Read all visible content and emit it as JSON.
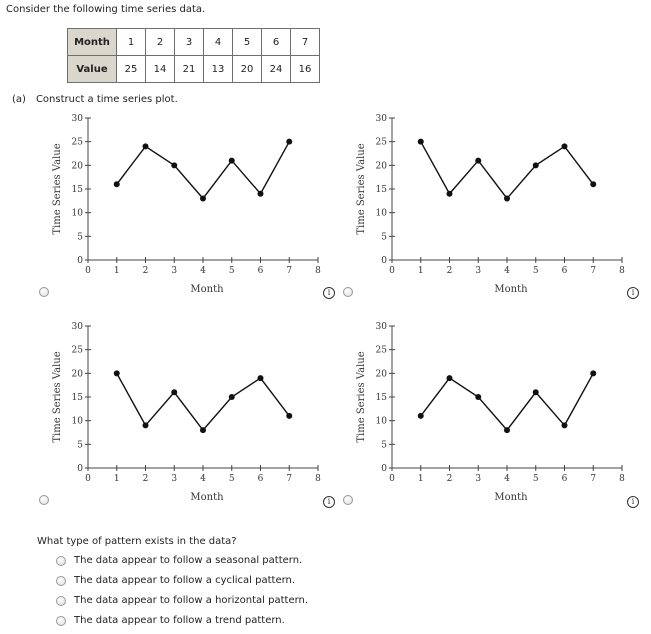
{
  "intro_text": "Consider the following time series data.",
  "table": {
    "row1_label": "Month",
    "row2_label": "Value",
    "months": [
      "1",
      "2",
      "3",
      "4",
      "5",
      "6",
      "7"
    ],
    "values": [
      "25",
      "14",
      "21",
      "13",
      "20",
      "24",
      "16"
    ]
  },
  "part_a": {
    "label": "(a)",
    "text": "Construct a time series plot."
  },
  "info_icon_glyph": "i",
  "chart_data": [
    {
      "type": "line",
      "xlabel": "Month",
      "ylabel": "Time Series Value",
      "x": [
        1,
        2,
        3,
        4,
        5,
        6,
        7
      ],
      "y": [
        16,
        24,
        20,
        13,
        21,
        14,
        25
      ],
      "xlim": [
        0,
        8
      ],
      "ylim": [
        0,
        30
      ],
      "xticks": [
        "0",
        "1",
        "2",
        "3",
        "4",
        "5",
        "6",
        "7",
        "8"
      ],
      "yticks": [
        "0",
        "5",
        "10",
        "15",
        "20",
        "25",
        "30"
      ],
      "grid": false
    },
    {
      "type": "line",
      "xlabel": "Month",
      "ylabel": "Time Series Value",
      "x": [
        1,
        2,
        3,
        4,
        5,
        6,
        7
      ],
      "y": [
        25,
        14,
        21,
        13,
        20,
        24,
        16
      ],
      "xlim": [
        0,
        8
      ],
      "ylim": [
        0,
        30
      ],
      "xticks": [
        "0",
        "1",
        "2",
        "3",
        "4",
        "5",
        "6",
        "7",
        "8"
      ],
      "yticks": [
        "0",
        "5",
        "10",
        "15",
        "20",
        "25",
        "30"
      ],
      "grid": false
    },
    {
      "type": "line",
      "xlabel": "Month",
      "ylabel": "Time Series Value",
      "x": [
        1,
        2,
        3,
        4,
        5,
        6,
        7
      ],
      "y": [
        20,
        9,
        16,
        8,
        15,
        19,
        11
      ],
      "xlim": [
        0,
        8
      ],
      "ylim": [
        0,
        30
      ],
      "xticks": [
        "0",
        "1",
        "2",
        "3",
        "4",
        "5",
        "6",
        "7",
        "8"
      ],
      "yticks": [
        "0",
        "5",
        "10",
        "15",
        "20",
        "25",
        "30"
      ],
      "grid": false
    },
    {
      "type": "line",
      "xlabel": "Month",
      "ylabel": "Time Series Value",
      "x": [
        1,
        2,
        3,
        4,
        5,
        6,
        7
      ],
      "y": [
        11,
        19,
        15,
        8,
        16,
        9,
        20
      ],
      "xlim": [
        0,
        8
      ],
      "ylim": [
        0,
        30
      ],
      "xticks": [
        "0",
        "1",
        "2",
        "3",
        "4",
        "5",
        "6",
        "7",
        "8"
      ],
      "yticks": [
        "0",
        "5",
        "10",
        "15",
        "20",
        "25",
        "30"
      ],
      "grid": false
    }
  ],
  "question": {
    "text": "What type of pattern exists in the data?",
    "options": [
      "The data appear to follow a seasonal pattern.",
      "The data appear to follow a cyclical pattern.",
      "The data appear to follow a horizontal pattern.",
      "The data appear to follow a trend pattern."
    ]
  }
}
